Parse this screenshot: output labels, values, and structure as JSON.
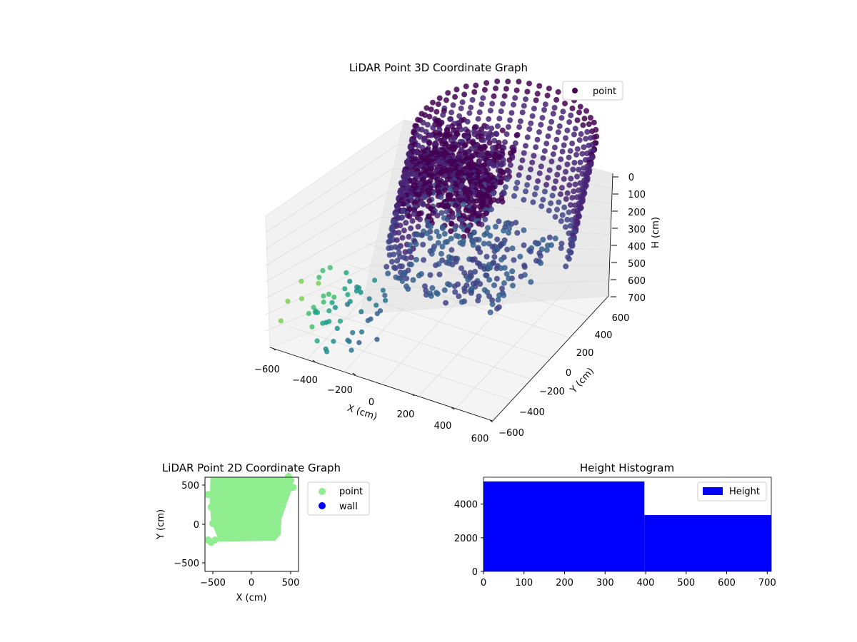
{
  "chart_data": [
    {
      "type": "scatter",
      "title": "LiDAR Point 3D Coordinate Graph",
      "xlabel": "X (cm)",
      "ylabel": "Y (cm)",
      "zlabel": "H (cm)",
      "x_ticks": [
        "−600",
        "−400",
        "−200",
        "0",
        "200",
        "400",
        "600"
      ],
      "y_ticks": [
        "−600",
        "−400",
        "−200",
        "0",
        "200",
        "400",
        "600"
      ],
      "z_ticks": [
        "0",
        "100",
        "200",
        "300",
        "400",
        "500",
        "600",
        "700"
      ],
      "xlim": [
        -600,
        600
      ],
      "ylim": [
        -600,
        600
      ],
      "zlim": [
        0,
        700
      ],
      "z_inverted": true,
      "colormap": "viridis",
      "legend": {
        "placement": "top-right",
        "entries": [
          {
            "name": "point",
            "color": "#440154"
          }
        ]
      }
    },
    {
      "type": "scatter",
      "title": "LiDAR Point 2D Coordinate Graph",
      "xlabel": "X (cm)",
      "ylabel": "Y (cm)",
      "x_ticks": [
        "−500",
        "0",
        "500"
      ],
      "y_ticks": [
        "−500",
        "0",
        "500"
      ],
      "xlim": [
        -600,
        600
      ],
      "ylim": [
        -600,
        600
      ],
      "legend": {
        "placement": "outside-right",
        "entries": [
          {
            "name": "point",
            "color": "#90ee90"
          },
          {
            "name": "wall",
            "color": "#0000ff"
          }
        ]
      }
    },
    {
      "type": "bar",
      "title": "Height Histogram",
      "x_ticks": [
        "0",
        "100",
        "200",
        "300",
        "400",
        "500",
        "600",
        "700"
      ],
      "y_ticks": [
        "0",
        "2000",
        "4000"
      ],
      "xlim": [
        0,
        710
      ],
      "ylim": [
        0,
        5600
      ],
      "bins": [
        {
          "from": 0,
          "to": 397,
          "count": 5350
        },
        {
          "from": 397,
          "to": 710,
          "count": 3350
        }
      ],
      "bar_color": "#0000ff",
      "legend": {
        "placement": "top-right",
        "entries": [
          {
            "name": "Height",
            "color": "#0000ff"
          }
        ]
      }
    }
  ]
}
